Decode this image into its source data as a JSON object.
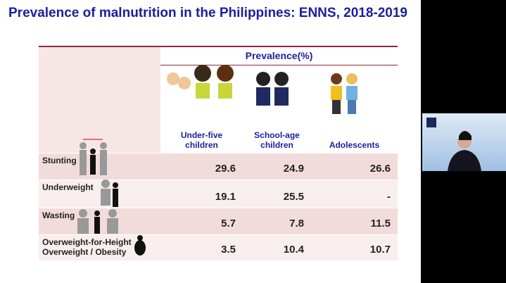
{
  "slide": {
    "title": "Prevalence of malnutrition in the Philippines: ENNS, 2018-2019",
    "table": {
      "group_header": "Prevalence(%)",
      "columns": [
        [
          "Under-five",
          "children"
        ],
        [
          "School-age",
          "children"
        ],
        [
          "Adolescents"
        ]
      ],
      "rows": [
        {
          "label": [
            "Stunting"
          ],
          "values": [
            "29.6",
            "24.9",
            "26.6"
          ]
        },
        {
          "label": [
            "Underweight"
          ],
          "values": [
            "19.1",
            "25.5",
            "-"
          ]
        },
        {
          "label": [
            "Wasting"
          ],
          "values": [
            "5.7",
            "7.8",
            "11.5"
          ]
        },
        {
          "label": [
            "Overweight-for-Height",
            "Overweight / Obesity"
          ],
          "values": [
            "3.5",
            "10.4",
            "10.7"
          ]
        }
      ]
    }
  }
}
